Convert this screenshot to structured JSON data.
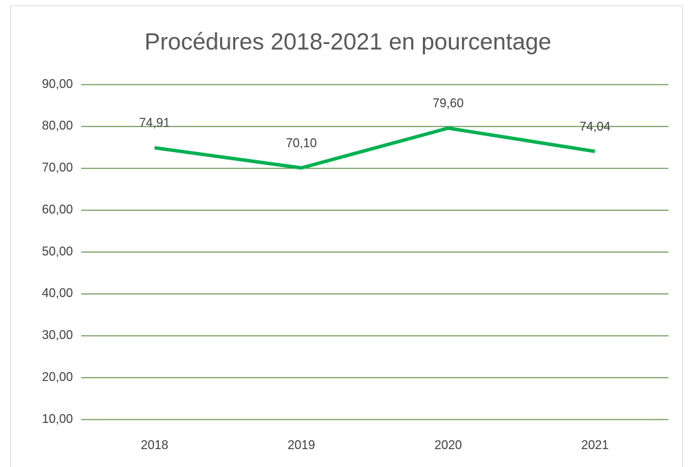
{
  "chart_data": {
    "type": "line",
    "title": "Procédures 2018-2021 en pourcentage",
    "categories": [
      "2018",
      "2019",
      "2020",
      "2021"
    ],
    "series": [
      {
        "color": "#00b050",
        "values": [
          74.91,
          70.1,
          79.6,
          74.04
        ],
        "value_labels": [
          "74,91",
          "70,10",
          "79,60",
          "74,04"
        ]
      }
    ],
    "ylim": [
      10,
      90
    ],
    "yticks": [
      {
        "value": 10,
        "label": "10,00"
      },
      {
        "value": 20,
        "label": "20,00"
      },
      {
        "value": 30,
        "label": "30,00"
      },
      {
        "value": 40,
        "label": "40,00"
      },
      {
        "value": 50,
        "label": "50,00"
      },
      {
        "value": 60,
        "label": "60,00"
      },
      {
        "value": 70,
        "label": "70,00"
      },
      {
        "value": 80,
        "label": "80,00"
      },
      {
        "value": 90,
        "label": "90,00"
      }
    ],
    "grid": true,
    "grid_color": "#548235"
  }
}
